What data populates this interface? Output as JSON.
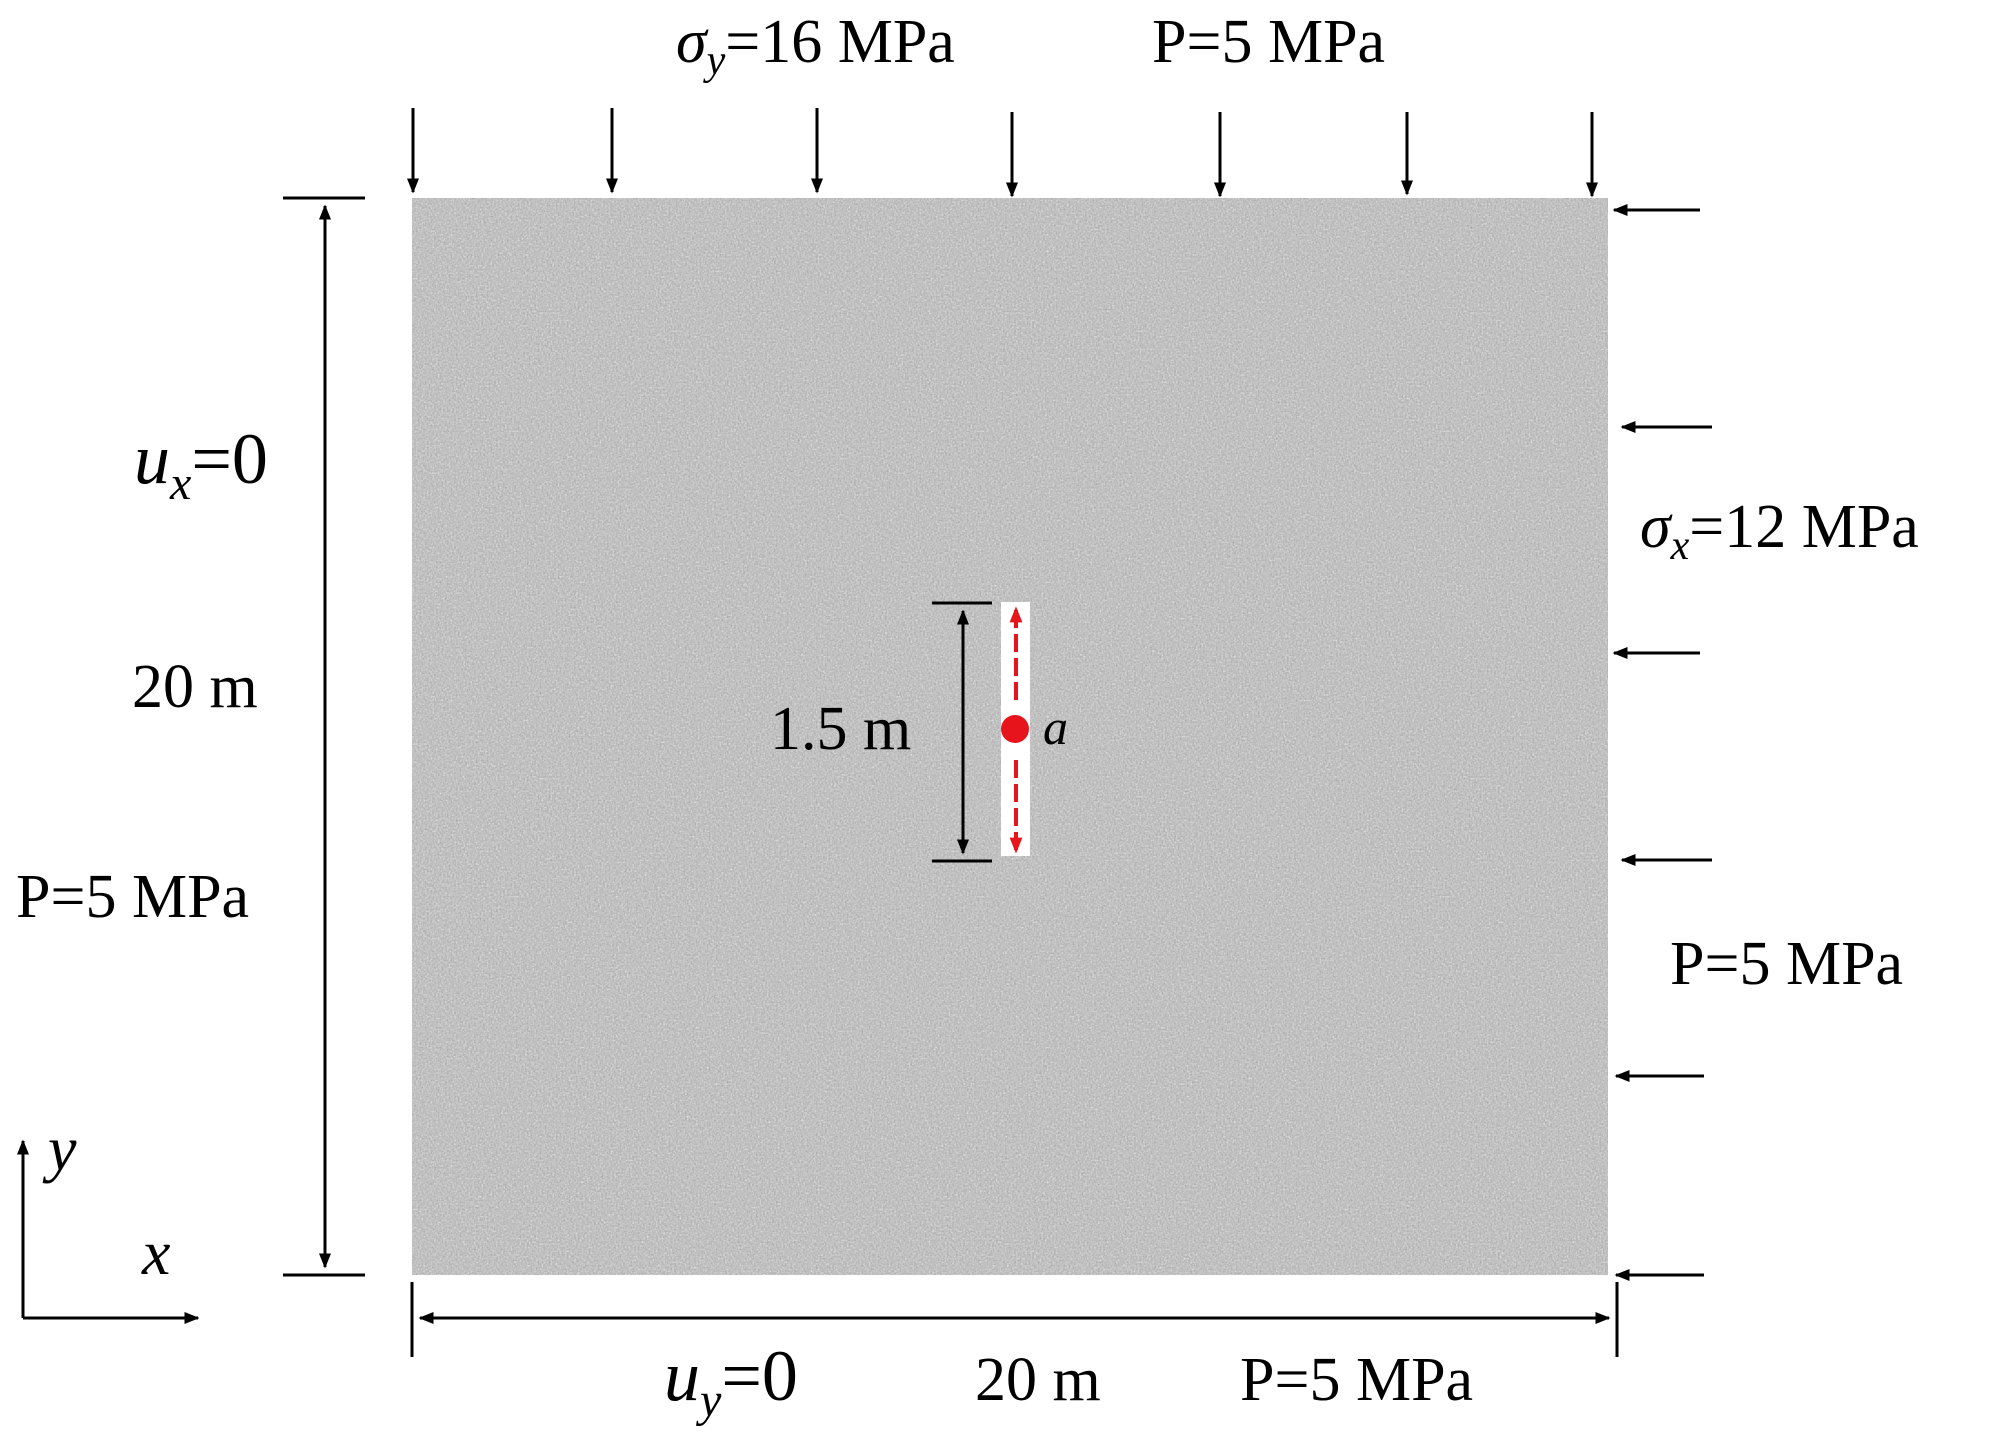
{
  "labels": {
    "sigma_y": {
      "symbol": "σ",
      "sub": "y",
      "value": "=16 MPa"
    },
    "top_pressure": "P=5 MPa",
    "sigma_x": {
      "symbol": "σ",
      "sub": "x",
      "value": "=12 MPa"
    },
    "right_pressure": "P=5 MPa",
    "ux": {
      "symbol": "u",
      "sub": "x",
      "value": "=0"
    },
    "left_height": "20 m",
    "left_pressure": "P=5 MPa",
    "crack_length": "1.5 m",
    "crack_point": "a",
    "uy": {
      "symbol": "u",
      "sub": "y",
      "value": "=0"
    },
    "bottom_width": "20 m",
    "bottom_pressure": "P=5 MPa",
    "axis_x": "x",
    "axis_y": "y"
  },
  "colors": {
    "rock_base": "#a9a9a9",
    "crack_fill": "#ffffff",
    "crack_arrow": "#e8141b",
    "ink": "#000000"
  }
}
